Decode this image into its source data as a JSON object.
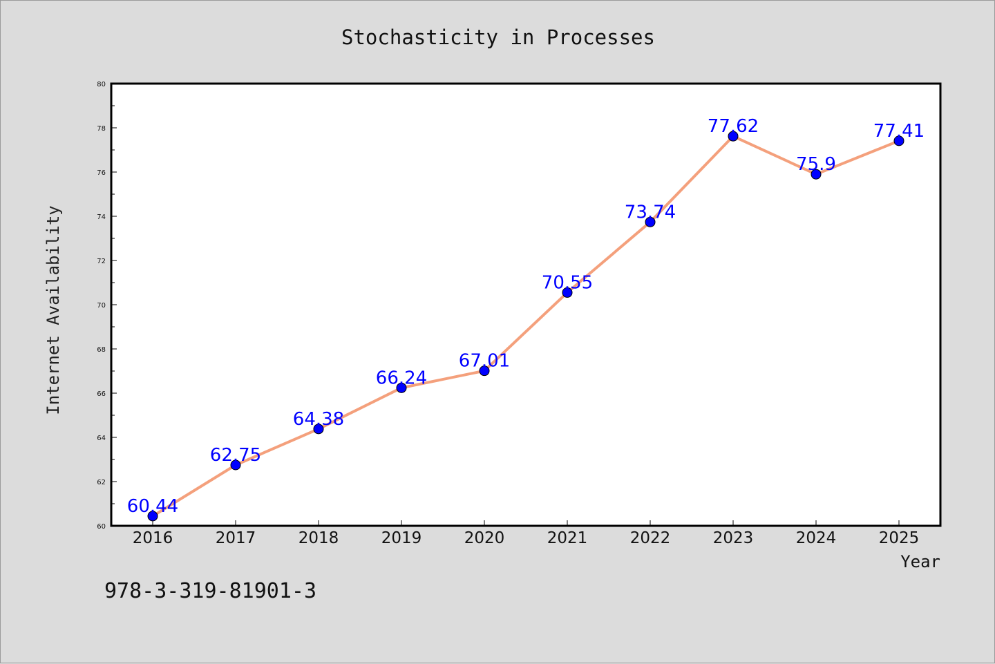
{
  "footer_text": "978-3-319-81901-3",
  "chart_data": {
    "type": "line",
    "title": "Stochasticity in Processes",
    "xlabel": "Year",
    "ylabel": "Internet Availability",
    "x": [
      "2016",
      "2017",
      "2018",
      "2019",
      "2020",
      "2021",
      "2022",
      "2023",
      "2024",
      "2025"
    ],
    "series": [
      {
        "values": [
          60.44,
          62.75,
          64.38,
          66.24,
          67.01,
          70.55,
          73.74,
          77.62,
          75.9,
          77.41
        ],
        "data_labels": [
          "60.44",
          "62.75",
          "64.38",
          "66.24",
          "67.01",
          "70.55",
          "73.74",
          "77.62",
          "75.9",
          "77.41"
        ],
        "line_color": "#f4a07c",
        "marker_color": "#0000ff"
      }
    ],
    "ylim": [
      60,
      80
    ],
    "yticks": [
      "60",
      "62",
      "64",
      "66",
      "68",
      "70",
      "72",
      "74",
      "76",
      "78",
      "80"
    ],
    "grid": false,
    "legend": "none"
  }
}
